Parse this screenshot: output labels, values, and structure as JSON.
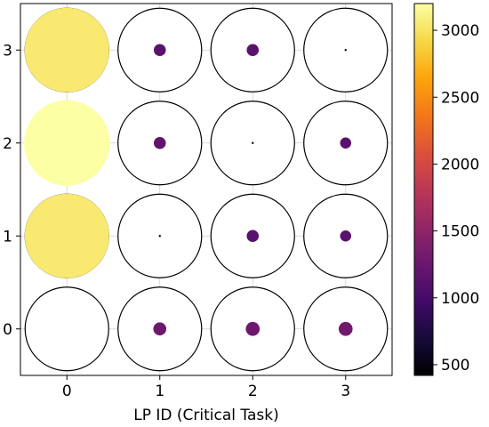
{
  "chart_data": {
    "type": "scatter",
    "title": "",
    "xlabel": "LP ID (Critical Task)",
    "ylabel": "",
    "x_ticks": [
      "0",
      "1",
      "2",
      "3"
    ],
    "y_ticks": [
      "0",
      "1",
      "2",
      "3"
    ],
    "xlim": [
      -0.5,
      3.5
    ],
    "ylim": [
      -0.5,
      3.5
    ],
    "grid": true,
    "colorbar": {
      "range": [
        420,
        3200
      ],
      "ticks": [
        "500",
        "1000",
        "1500",
        "2000",
        "2500",
        "3000"
      ],
      "tick_values": [
        500,
        1000,
        1500,
        2000,
        2500,
        3000
      ],
      "colormap": "inferno"
    },
    "points": [
      {
        "x": 0,
        "y": 0,
        "value": 0,
        "size": 0
      },
      {
        "x": 1,
        "y": 0,
        "value": 1280,
        "size": 0.14
      },
      {
        "x": 2,
        "y": 0,
        "value": 1280,
        "size": 0.15
      },
      {
        "x": 3,
        "y": 0,
        "value": 1300,
        "size": 0.15
      },
      {
        "x": 0,
        "y": 1,
        "value": 3050,
        "size": 0.91
      },
      {
        "x": 1,
        "y": 1,
        "value": 500,
        "size": 0.012
      },
      {
        "x": 2,
        "y": 1,
        "value": 1150,
        "size": 0.13
      },
      {
        "x": 3,
        "y": 1,
        "value": 1150,
        "size": 0.12
      },
      {
        "x": 0,
        "y": 2,
        "value": 3200,
        "size": 0.92
      },
      {
        "x": 1,
        "y": 2,
        "value": 1200,
        "size": 0.13
      },
      {
        "x": 2,
        "y": 2,
        "value": 500,
        "size": 0.018
      },
      {
        "x": 3,
        "y": 2,
        "value": 1150,
        "size": 0.12
      },
      {
        "x": 0,
        "y": 3,
        "value": 3050,
        "size": 0.91
      },
      {
        "x": 1,
        "y": 3,
        "value": 1150,
        "size": 0.13
      },
      {
        "x": 2,
        "y": 3,
        "value": 1150,
        "size": 0.13
      },
      {
        "x": 3,
        "y": 3,
        "value": 500,
        "size": 0.012
      }
    ]
  }
}
